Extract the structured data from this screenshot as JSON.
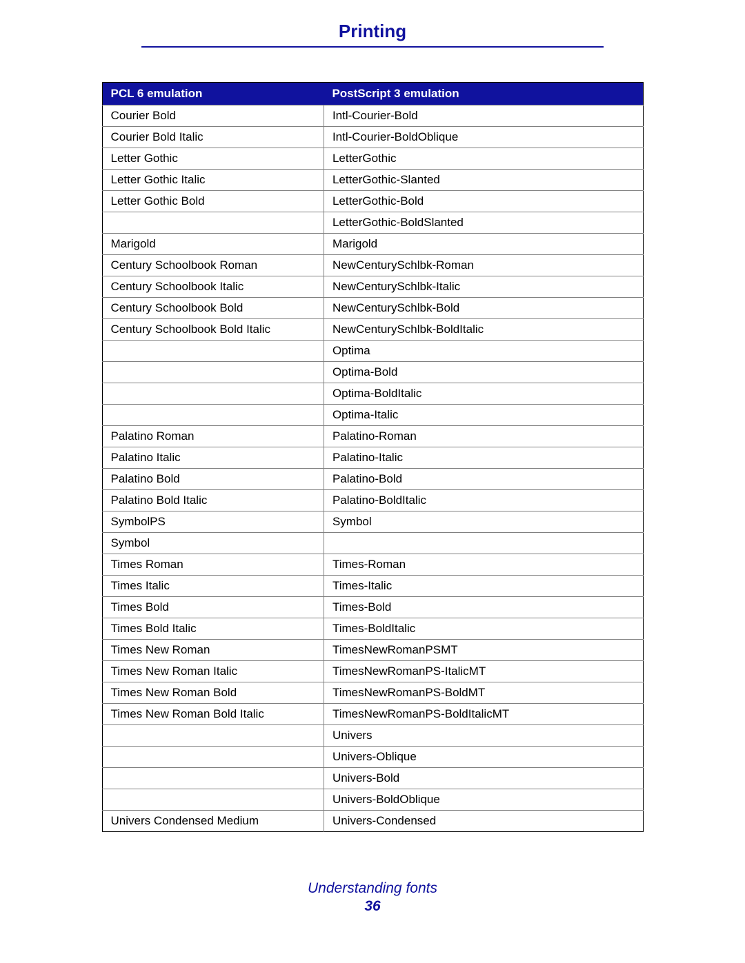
{
  "colors": {
    "accent_blue": "#10129e",
    "header_bg": "#10129e",
    "header_text": "#ffffff",
    "row_border": "#808080",
    "table_border": "#000000",
    "text": "#000000"
  },
  "page": {
    "title": "Printing",
    "footer_subtitle": "Understanding fonts",
    "footer_page_number": "36"
  },
  "table": {
    "columns": [
      "PCL 6 emulation",
      "PostScript 3 emulation"
    ],
    "rows": [
      [
        "Courier Bold",
        "Intl-Courier-Bold"
      ],
      [
        "Courier Bold Italic",
        "Intl-Courier-BoldOblique"
      ],
      [
        "Letter Gothic",
        "LetterGothic"
      ],
      [
        "Letter Gothic Italic",
        "LetterGothic-Slanted"
      ],
      [
        "Letter Gothic Bold",
        "LetterGothic-Bold"
      ],
      [
        "",
        "LetterGothic-BoldSlanted"
      ],
      [
        "Marigold",
        "Marigold"
      ],
      [
        "Century Schoolbook Roman",
        "NewCenturySchlbk-Roman"
      ],
      [
        "Century Schoolbook Italic",
        "NewCenturySchlbk-Italic"
      ],
      [
        "Century Schoolbook Bold",
        "NewCenturySchlbk-Bold"
      ],
      [
        "Century Schoolbook Bold Italic",
        "NewCenturySchlbk-BoldItalic"
      ],
      [
        "",
        "Optima"
      ],
      [
        "",
        "Optima-Bold"
      ],
      [
        "",
        "Optima-BoldItalic"
      ],
      [
        "",
        "Optima-Italic"
      ],
      [
        "Palatino Roman",
        "Palatino-Roman"
      ],
      [
        "Palatino Italic",
        "Palatino-Italic"
      ],
      [
        "Palatino Bold",
        "Palatino-Bold"
      ],
      [
        "Palatino Bold Italic",
        "Palatino-BoldItalic"
      ],
      [
        "SymbolPS",
        "Symbol"
      ],
      [
        "Symbol",
        ""
      ],
      [
        "Times Roman",
        "Times-Roman"
      ],
      [
        "Times Italic",
        "Times-Italic"
      ],
      [
        "Times Bold",
        "Times-Bold"
      ],
      [
        "Times Bold Italic",
        "Times-BoldItalic"
      ],
      [
        "Times New Roman",
        "TimesNewRomanPSMT"
      ],
      [
        "Times New Roman Italic",
        "TimesNewRomanPS-ItalicMT"
      ],
      [
        "Times New Roman Bold",
        "TimesNewRomanPS-BoldMT"
      ],
      [
        "Times New Roman Bold Italic",
        "TimesNewRomanPS-BoldItalicMT"
      ],
      [
        "",
        "Univers"
      ],
      [
        "",
        "Univers-Oblique"
      ],
      [
        "",
        "Univers-Bold"
      ],
      [
        "",
        "Univers-BoldOblique"
      ],
      [
        "Univers Condensed Medium",
        "Univers-Condensed"
      ]
    ]
  }
}
